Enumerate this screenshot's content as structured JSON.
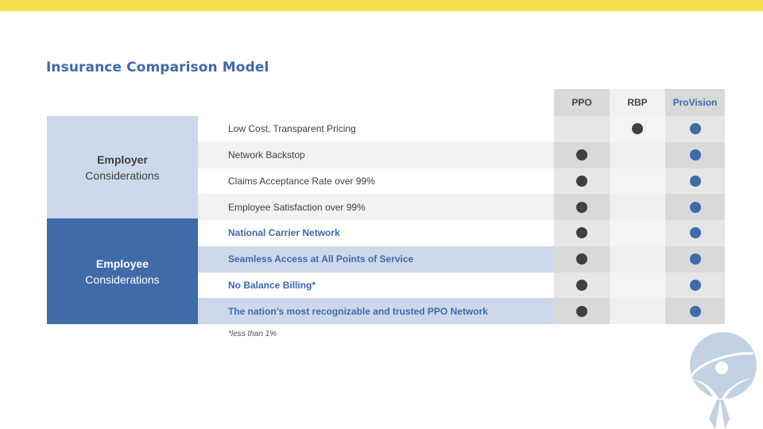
{
  "title": "Insurance Comparison Model",
  "columns": [
    {
      "label": "PPO"
    },
    {
      "label": "RBP"
    },
    {
      "label": "ProVision"
    }
  ],
  "groups": [
    {
      "strong": "Employer",
      "sub": "Considerations"
    },
    {
      "strong": "Employee",
      "sub": "Considerations"
    }
  ],
  "rows": [
    {
      "label": "Low Cost, Transparent Pricing",
      "ppo": false,
      "rbp": true,
      "provision": true
    },
    {
      "label": "Network Backstop",
      "ppo": true,
      "rbp": false,
      "provision": true
    },
    {
      "label": "Claims Acceptance Rate over 99%",
      "ppo": true,
      "rbp": false,
      "provision": true
    },
    {
      "label": "Employee Satisfaction over 99%",
      "ppo": true,
      "rbp": false,
      "provision": true
    },
    {
      "label": "National Carrier Network",
      "ppo": true,
      "rbp": false,
      "provision": true
    },
    {
      "label": "Seamless Access at All Points of Service",
      "ppo": true,
      "rbp": false,
      "provision": true
    },
    {
      "label": "No Balance Billing*",
      "ppo": true,
      "rbp": false,
      "provision": true
    },
    {
      "label": "The nation’s most recognizable and trusted PPO Network",
      "ppo": true,
      "rbp": false,
      "provision": true
    }
  ],
  "footnote": "*less than 1%",
  "colors": {
    "accent_yellow": "#f5df4d",
    "brand_blue": "#416aa9",
    "light_blue": "#cdd9ea",
    "dot_dark": "#404040"
  }
}
